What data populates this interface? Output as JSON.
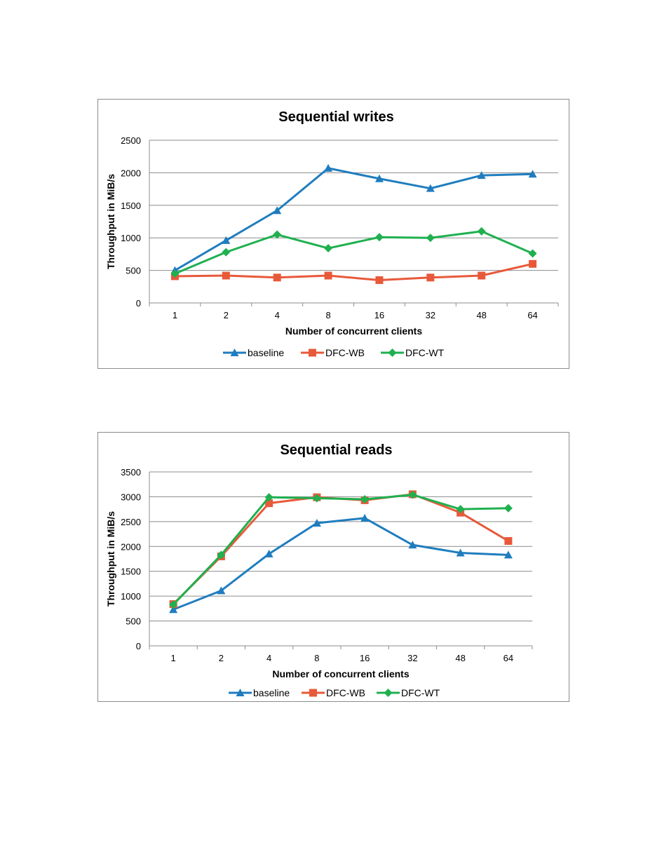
{
  "chart_data": [
    {
      "type": "line",
      "title": "Sequential writes",
      "xlabel": "Number of concurrent clients",
      "ylabel": "Throughput in MiB/s",
      "categories": [
        "1",
        "2",
        "4",
        "8",
        "16",
        "32",
        "48",
        "64"
      ],
      "yticks": [
        "0",
        "500",
        "1000",
        "1500",
        "2000",
        "2500"
      ],
      "ylim": [
        0,
        2500
      ],
      "grid": true,
      "legend_position": "bottom",
      "series": [
        {
          "name": "baseline",
          "color": "#1f7dbf",
          "marker": "triangle",
          "values": [
            500,
            960,
            1420,
            2070,
            1910,
            1760,
            1960,
            1980
          ]
        },
        {
          "name": "DFC-WB",
          "color": "#e8593a",
          "marker": "square",
          "values": [
            410,
            420,
            390,
            420,
            350,
            390,
            420,
            600
          ]
        },
        {
          "name": "DFC-WT",
          "color": "#1fb04f",
          "marker": "diamond",
          "values": [
            450,
            780,
            1050,
            840,
            1010,
            1000,
            1100,
            760
          ]
        }
      ]
    },
    {
      "type": "line",
      "title": "Sequential reads",
      "xlabel": "Number of concurrent clients",
      "ylabel": "Throughput in MiB/s",
      "categories": [
        "1",
        "2",
        "4",
        "8",
        "16",
        "32",
        "48",
        "64"
      ],
      "yticks": [
        "0",
        "500",
        "1000",
        "1500",
        "2000",
        "2500",
        "3000",
        "3500"
      ],
      "ylim": [
        0,
        3500
      ],
      "grid": true,
      "legend_position": "bottom",
      "series": [
        {
          "name": "baseline",
          "color": "#1f7dbf",
          "marker": "triangle",
          "values": [
            730,
            1110,
            1850,
            2470,
            2570,
            2030,
            1870,
            1830
          ]
        },
        {
          "name": "DFC-WB",
          "color": "#e8593a",
          "marker": "square",
          "values": [
            840,
            1800,
            2870,
            2990,
            2930,
            3050,
            2680,
            2110
          ]
        },
        {
          "name": "DFC-WT",
          "color": "#1fb04f",
          "marker": "diamond",
          "values": [
            830,
            1830,
            2990,
            2970,
            2950,
            3040,
            2750,
            2770
          ]
        }
      ]
    }
  ]
}
